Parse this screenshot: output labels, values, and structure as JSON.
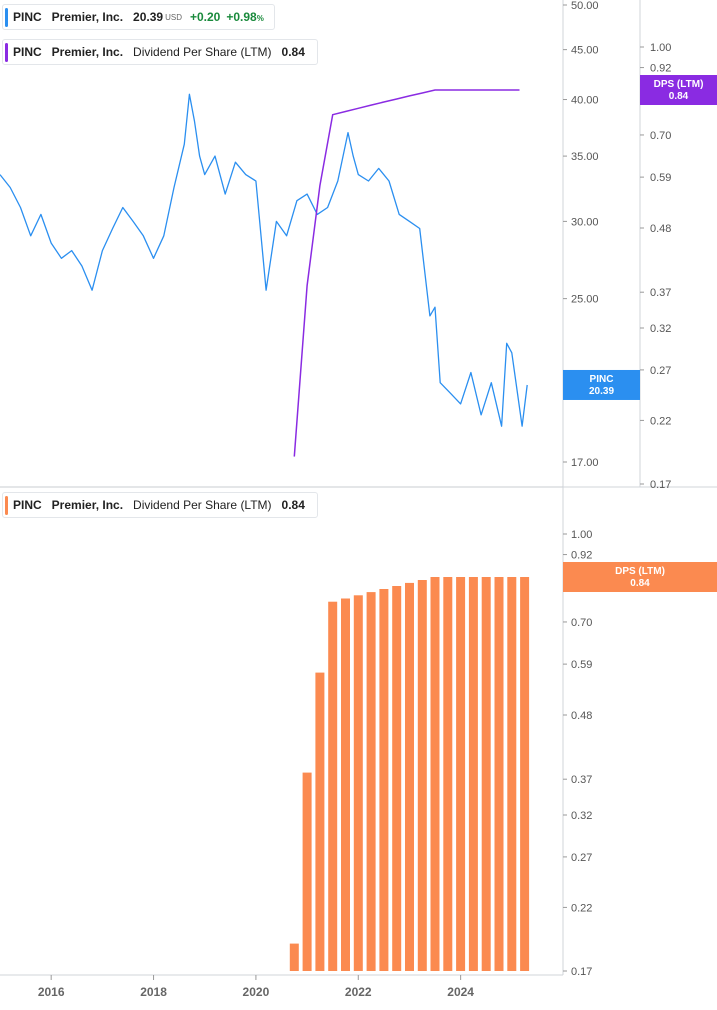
{
  "legend_top": {
    "ticker": "PINC",
    "name": "Premier, Inc.",
    "price": "20.39",
    "currency": "USD",
    "change": "+0.20",
    "change_pct": "+0.98",
    "pct_sign": "%",
    "color": "#2b8ff0"
  },
  "legend_dps_top": {
    "ticker": "PINC",
    "name": "Premier, Inc.",
    "metric": "Dividend Per Share (LTM)",
    "value": "0.84",
    "color": "#8a2be2"
  },
  "legend_dps_bottom": {
    "ticker": "PINC",
    "name": "Premier, Inc.",
    "metric": "Dividend Per Share (LTM)",
    "value": "0.84",
    "color": "#fb8a50"
  },
  "price_tag": {
    "label": "PINC",
    "value": "20.39",
    "color": "#2b8ff0"
  },
  "dps_tag_top": {
    "label": "DPS (LTM)",
    "value": "0.84",
    "color": "#8a2be2"
  },
  "dps_tag_bottom": {
    "label": "DPS (LTM)",
    "value": "0.84",
    "color": "#fb8a50"
  },
  "chart_data": [
    {
      "type": "line",
      "series": [
        {
          "name": "PINC",
          "axis": "price",
          "color": "#2b8ff0",
          "x": [
            2015.0,
            2015.2,
            2015.4,
            2015.6,
            2015.8,
            2016.0,
            2016.2,
            2016.4,
            2016.6,
            2016.8,
            2017.0,
            2017.2,
            2017.4,
            2017.6,
            2017.8,
            2018.0,
            2018.2,
            2018.4,
            2018.6,
            2018.7,
            2018.8,
            2018.9,
            2019.0,
            2019.2,
            2019.4,
            2019.6,
            2019.8,
            2020.0,
            2020.2,
            2020.4,
            2020.6,
            2020.8,
            2021.0,
            2021.2,
            2021.4,
            2021.6,
            2021.8,
            2021.9,
            2022.0,
            2022.2,
            2022.4,
            2022.6,
            2022.8,
            2023.0,
            2023.2,
            2023.4,
            2023.5,
            2023.6,
            2023.8,
            2024.0,
            2024.2,
            2024.4,
            2024.6,
            2024.8,
            2024.9,
            2025.0,
            2025.2,
            2025.3
          ],
          "values": [
            33.5,
            32.5,
            31.0,
            29.0,
            30.5,
            28.5,
            27.5,
            28.0,
            27.0,
            25.5,
            28.0,
            29.5,
            31.0,
            30.0,
            29.0,
            27.5,
            29.0,
            32.5,
            36.0,
            40.5,
            38.0,
            35.0,
            33.5,
            35.0,
            32.0,
            34.5,
            33.5,
            33.0,
            25.5,
            30.0,
            29.0,
            31.5,
            32.0,
            30.5,
            31.0,
            33.0,
            37.0,
            35.0,
            33.5,
            33.0,
            34.0,
            33.0,
            30.5,
            30.0,
            29.5,
            24.0,
            24.5,
            20.5,
            20.0,
            19.5,
            21.0,
            19.0,
            20.5,
            18.5,
            22.5,
            22.0,
            18.5,
            20.39
          ]
        },
        {
          "name": "Dividend Per Share (LTM)",
          "axis": "dps",
          "color": "#8a2be2",
          "x": [
            2020.75,
            2021.0,
            2021.25,
            2021.5,
            2021.75,
            2022.0,
            2022.25,
            2022.5,
            2022.75,
            2023.0,
            2023.25,
            2023.5,
            2023.75,
            2024.0,
            2024.25,
            2024.5,
            2024.75,
            2025.0,
            2025.15
          ],
          "values": [
            0.19,
            0.38,
            0.57,
            0.76,
            0.77,
            0.78,
            0.79,
            0.8,
            0.81,
            0.82,
            0.83,
            0.84,
            0.84,
            0.84,
            0.84,
            0.84,
            0.84,
            0.84,
            0.84
          ]
        }
      ],
      "ylim_price": [
        17,
        50
      ],
      "ylim_dps": [
        0.17,
        1.0
      ],
      "price_ticks": [
        "17.00",
        "25.00",
        "30.00",
        "35.00",
        "40.00",
        "45.00",
        "50.00"
      ],
      "dps_ticks": [
        "0.17",
        "0.22",
        "0.27",
        "0.32",
        "0.37",
        "0.48",
        "0.59",
        "0.70",
        "0.92",
        "1.00"
      ],
      "log_scale": true,
      "xlim": [
        2015.0,
        2026.0
      ]
    },
    {
      "type": "bar",
      "series": [
        {
          "name": "Dividend Per Share (LTM)",
          "color": "#fb8a50",
          "x": [
            2020.75,
            2021.0,
            2021.25,
            2021.5,
            2021.75,
            2022.0,
            2022.25,
            2022.5,
            2022.75,
            2023.0,
            2023.25,
            2023.5,
            2023.75,
            2024.0,
            2024.25,
            2024.5,
            2024.75,
            2025.0,
            2025.25
          ],
          "values": [
            0.19,
            0.38,
            0.57,
            0.76,
            0.77,
            0.78,
            0.79,
            0.8,
            0.81,
            0.82,
            0.83,
            0.84,
            0.84,
            0.84,
            0.84,
            0.84,
            0.84,
            0.84,
            0.84
          ]
        }
      ],
      "ylim": [
        0.17,
        1.0
      ],
      "yticks": [
        "0.17",
        "0.22",
        "0.27",
        "0.32",
        "0.37",
        "0.48",
        "0.59",
        "0.70",
        "0.81",
        "0.92",
        "1.00"
      ],
      "log_scale": true,
      "xlim": [
        2015.0,
        2026.0
      ]
    }
  ],
  "x_axis": {
    "ticks": [
      "2016",
      "2018",
      "2020",
      "2022",
      "2024"
    ],
    "tick_values": [
      2016,
      2018,
      2020,
      2022,
      2024
    ]
  }
}
